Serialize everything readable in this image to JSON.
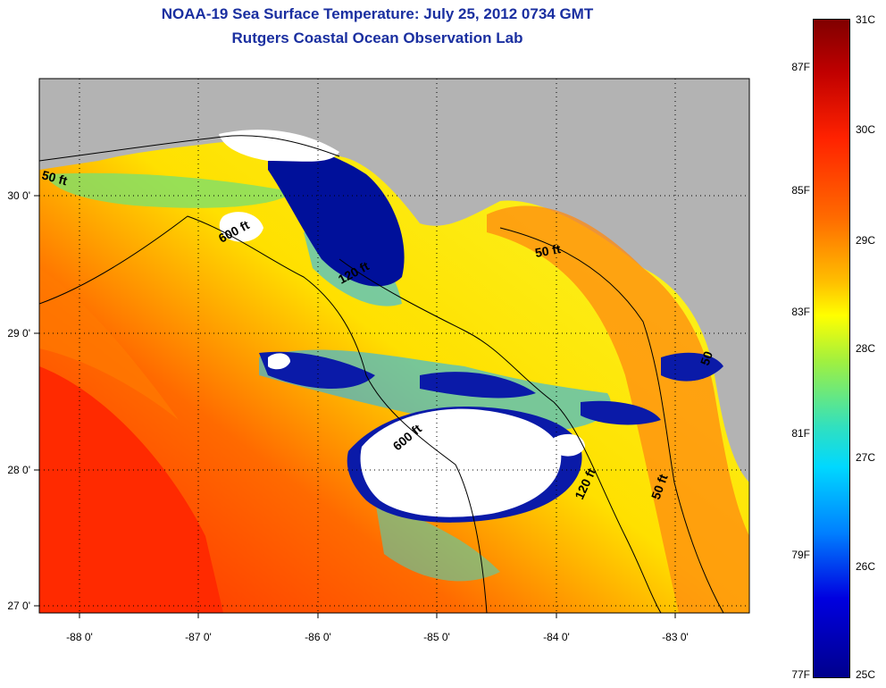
{
  "title": "NOAA-19 Sea Surface Temperature:  July 25, 2012 0734 GMT",
  "subtitle": "Rutgers Coastal Ocean Observation Lab",
  "x_ticks": [
    "-88 0'",
    "-87 0'",
    "-86 0'",
    "-85 0'",
    "-84 0'",
    "-83 0'"
  ],
  "y_ticks": [
    "30 0'",
    "29 0'",
    "28 0'",
    "27 0'"
  ],
  "contour_labels": [
    "50 ft",
    "600 ft",
    "120 ft",
    "600 ft",
    "50 ft",
    "120 ft",
    "50 ft",
    "50"
  ],
  "colorbar": {
    "celsius": [
      "31C",
      "30C",
      "29C",
      "28C",
      "27C",
      "26C",
      "25C"
    ],
    "fahrenheit": [
      "87F",
      "85F",
      "83F",
      "81F",
      "79F",
      "77F"
    ]
  },
  "colors": {
    "land": "#b3b3b3",
    "cloud": "#ffffff",
    "title": "#1a2fa0",
    "warm": "#ff3000",
    "mid": "#f0ff30",
    "cool": "#00109a"
  }
}
